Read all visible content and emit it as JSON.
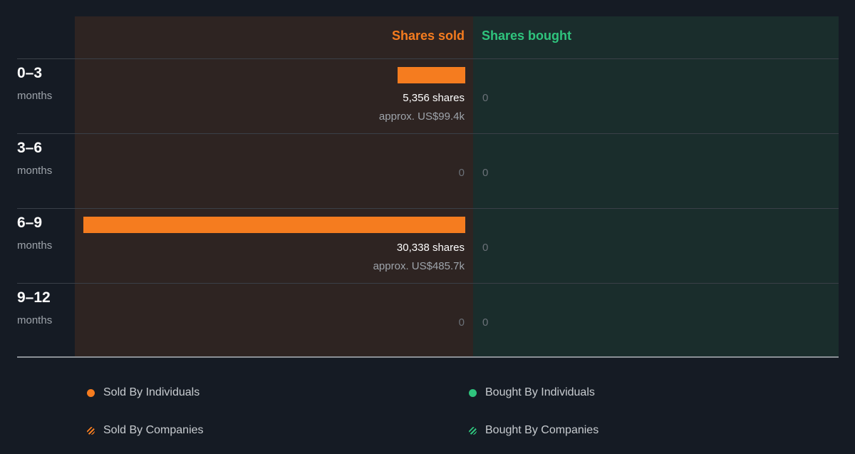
{
  "chart_data": {
    "type": "bar",
    "columns": {
      "sold": "Shares sold",
      "bought": "Shares bought"
    },
    "rows": [
      {
        "period": "0–3",
        "unit": "months",
        "sold_shares": 5356,
        "sold_label": "5,356 shares",
        "sold_approx": "approx. US$99.4k",
        "bought_label": "0"
      },
      {
        "period": "3–6",
        "unit": "months",
        "sold_shares": 0,
        "sold_label": "0",
        "sold_approx": "",
        "bought_label": "0"
      },
      {
        "period": "6–9",
        "unit": "months",
        "sold_shares": 30338,
        "sold_label": "30,338 shares",
        "sold_approx": "approx. US$485.7k",
        "bought_label": "0"
      },
      {
        "period": "9–12",
        "unit": "months",
        "sold_shares": 0,
        "sold_label": "0",
        "sold_approx": "",
        "bought_label": "0"
      }
    ],
    "max_shares": 30338
  },
  "legend": {
    "sold_individuals": "Sold By Individuals",
    "sold_companies": "Sold By Companies",
    "bought_individuals": "Bought By Individuals",
    "bought_companies": "Bought By Companies"
  },
  "colors": {
    "sold": "#f57c1f",
    "bought": "#2fc47d"
  }
}
